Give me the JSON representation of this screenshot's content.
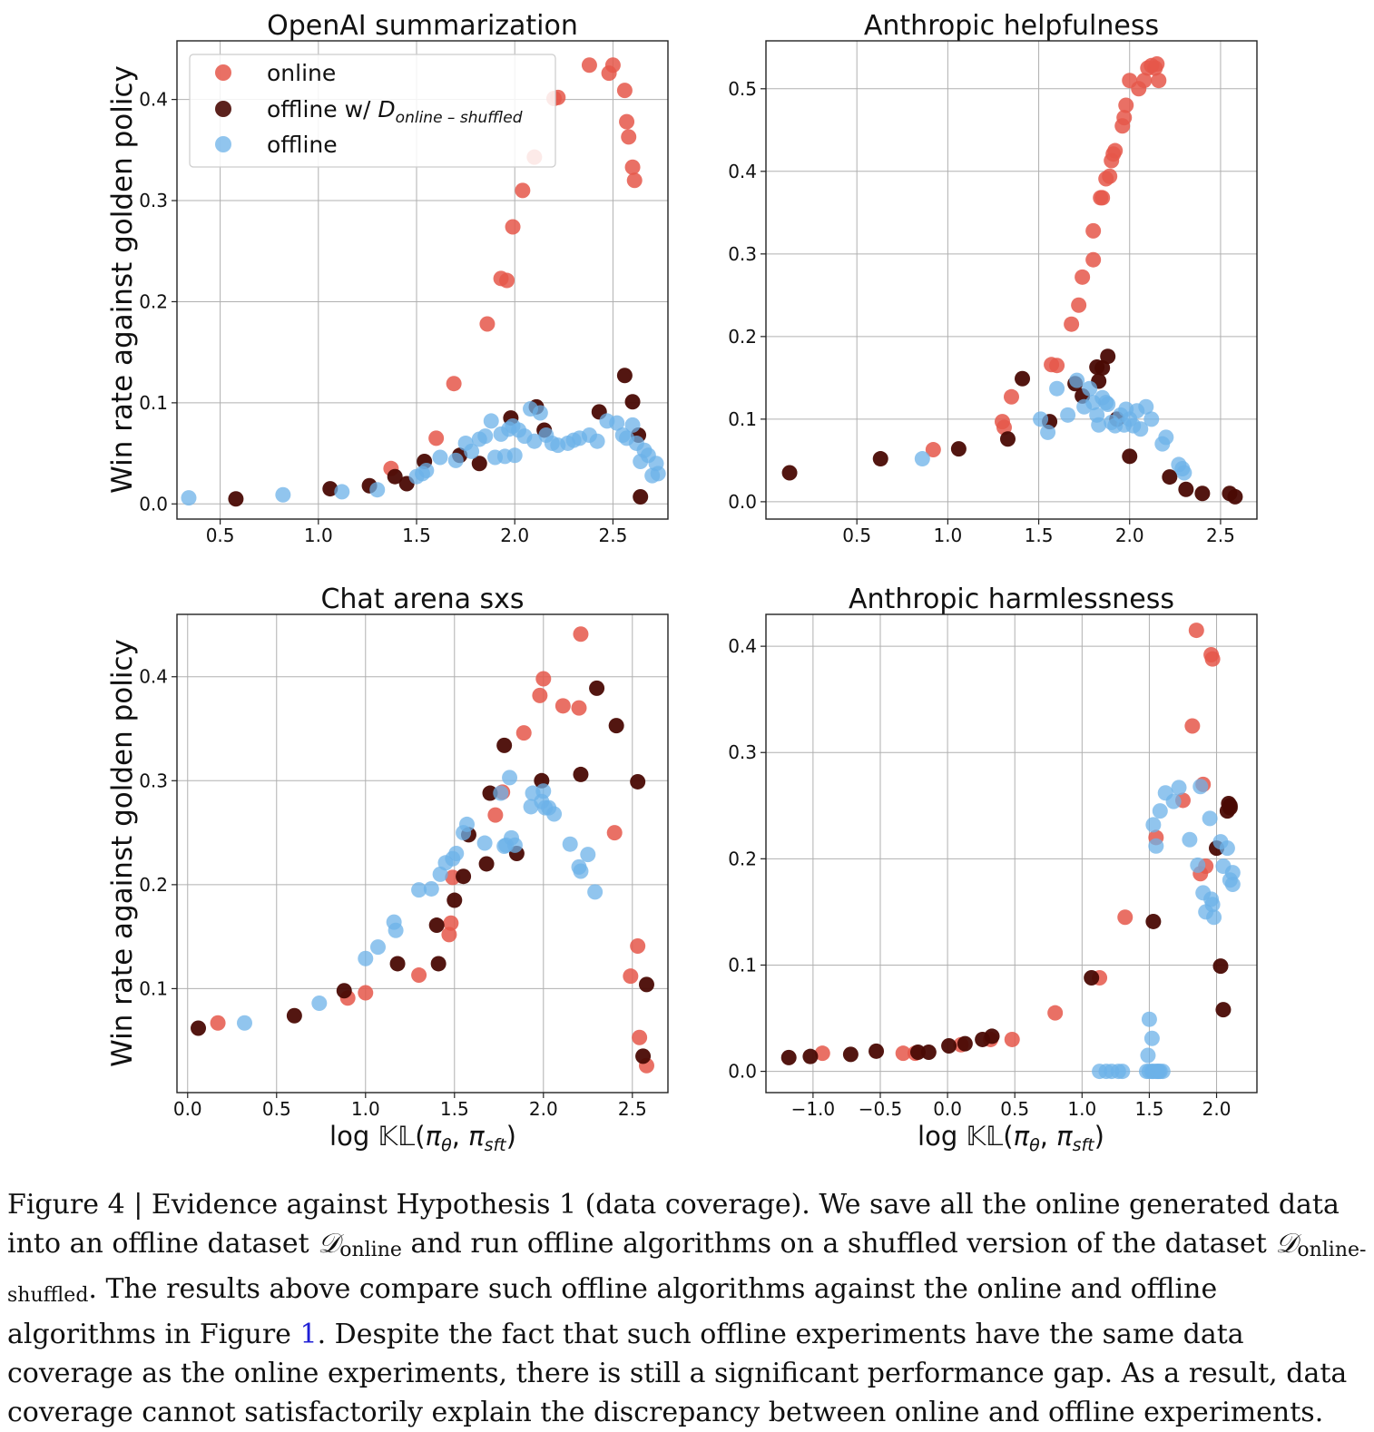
{
  "colors": {
    "online": "#e5574a",
    "offline_shuffled": "#4a0a04",
    "offline": "#6cb2e8"
  },
  "legend": {
    "online": "online",
    "offline_shuffled_prefix": "offline w/ ",
    "offline_shuffled_D": "D",
    "offline_shuffled_sub": "online – shuffled",
    "offline": "offline"
  },
  "axis_labels": {
    "y": "Win rate against golden policy",
    "x_prefix": "log ",
    "x_kl": "𝕂𝕃",
    "x_args_open": "(",
    "x_pi1": "π",
    "x_sub1": "θ",
    "x_sep": ", ",
    "x_pi2": "π",
    "x_sub2": "sft",
    "x_args_close": ")"
  },
  "caption": {
    "p1": "Figure 4 | Evidence against Hypothesis 1 (data coverage). We save all the online generated data into an offline dataset ",
    "d1": "𝒟",
    "d1_sub": "online",
    "p2": " and run offline algorithms on a shuffled version of the dataset ",
    "d2": "𝒟",
    "d2_sub": "online-shuffled",
    "p3": ". The results above compare such offline algorithms against the online and offline algorithms in Figure ",
    "ref": "1",
    "p4": ". Despite the fact that such offline experiments have the same data coverage as the online experiments, there is still a significant performance gap. As a result, data coverage cannot satisfactorily explain the discrepancy between online and offline experiments."
  },
  "chart_data": [
    {
      "type": "scatter",
      "title": "OpenAI summarization",
      "xlim": [
        0.28,
        2.78
      ],
      "ylim": [
        -0.015,
        0.458
      ],
      "xticks": [
        0.5,
        1.0,
        1.5,
        2.0,
        2.5
      ],
      "yticks": [
        0.0,
        0.1,
        0.2,
        0.3,
        0.4
      ],
      "xtick_labels": [
        "0.5",
        "1.0",
        "1.5",
        "2.0",
        "2.5"
      ],
      "ytick_labels": [
        "0.0",
        "0.1",
        "0.2",
        "0.3",
        "0.4"
      ],
      "grid": true,
      "legend": "top-left",
      "series": [
        {
          "name": "online",
          "x": [
            1.37,
            1.6,
            1.69,
            1.86,
            1.93,
            1.96,
            1.99,
            2.04,
            2.1,
            2.2,
            2.22,
            2.38,
            2.48,
            2.5,
            2.56,
            2.57,
            2.58,
            2.6,
            2.61
          ],
          "y": [
            0.035,
            0.065,
            0.119,
            0.178,
            0.223,
            0.221,
            0.274,
            0.31,
            0.343,
            0.401,
            0.402,
            0.434,
            0.426,
            0.434,
            0.409,
            0.378,
            0.363,
            0.333,
            0.32
          ]
        },
        {
          "name": "offline_shuffled",
          "x": [
            0.58,
            1.06,
            1.26,
            1.39,
            1.45,
            1.54,
            1.72,
            1.82,
            1.98,
            2.11,
            2.15,
            2.43,
            2.56,
            2.6,
            2.63,
            2.64
          ],
          "y": [
            0.005,
            0.015,
            0.018,
            0.027,
            0.02,
            0.042,
            0.048,
            0.04,
            0.085,
            0.096,
            0.073,
            0.091,
            0.127,
            0.101,
            0.068,
            0.007
          ]
        },
        {
          "name": "offline",
          "x": [
            0.34,
            0.82,
            1.12,
            1.3,
            1.5,
            1.53,
            1.55,
            1.62,
            1.7,
            1.75,
            1.78,
            1.82,
            1.85,
            1.88,
            1.9,
            1.93,
            1.95,
            1.97,
            1.99,
            2.0,
            2.02,
            2.05,
            2.08,
            2.1,
            2.13,
            2.16,
            2.19,
            2.22,
            2.27,
            2.3,
            2.33,
            2.38,
            2.42,
            2.47,
            2.52,
            2.55,
            2.57,
            2.6,
            2.62,
            2.64,
            2.66,
            2.68,
            2.7,
            2.72,
            2.73
          ],
          "y": [
            0.006,
            0.009,
            0.012,
            0.014,
            0.027,
            0.03,
            0.033,
            0.046,
            0.043,
            0.06,
            0.052,
            0.064,
            0.067,
            0.082,
            0.046,
            0.069,
            0.047,
            0.074,
            0.077,
            0.048,
            0.073,
            0.067,
            0.094,
            0.062,
            0.09,
            0.068,
            0.06,
            0.058,
            0.06,
            0.063,
            0.065,
            0.068,
            0.062,
            0.082,
            0.08,
            0.068,
            0.065,
            0.078,
            0.06,
            0.042,
            0.053,
            0.048,
            0.028,
            0.04,
            0.03
          ]
        }
      ]
    },
    {
      "type": "scatter",
      "title": "Anthropic helpfulness",
      "xlim": [
        0.0,
        2.7
      ],
      "ylim": [
        -0.021,
        0.558
      ],
      "xticks": [
        0.5,
        1.0,
        1.5,
        2.0,
        2.5
      ],
      "yticks": [
        0.0,
        0.1,
        0.2,
        0.3,
        0.4,
        0.5
      ],
      "xtick_labels": [
        "0.5",
        "1.0",
        "1.5",
        "2.0",
        "2.5"
      ],
      "ytick_labels": [
        "0.0",
        "0.1",
        "0.2",
        "0.3",
        "0.4",
        "0.5"
      ],
      "grid": true,
      "series": [
        {
          "name": "online",
          "x": [
            0.92,
            1.3,
            1.31,
            1.35,
            1.57,
            1.6,
            1.68,
            1.72,
            1.74,
            1.8,
            1.8,
            1.84,
            1.85,
            1.87,
            1.89,
            1.9,
            1.91,
            1.92,
            1.96,
            1.97,
            1.98,
            2.0,
            2.05,
            2.08,
            2.1,
            2.12,
            2.14,
            2.15,
            2.16
          ],
          "y": [
            0.063,
            0.097,
            0.09,
            0.127,
            0.166,
            0.165,
            0.215,
            0.238,
            0.272,
            0.293,
            0.328,
            0.368,
            0.368,
            0.391,
            0.394,
            0.413,
            0.421,
            0.425,
            0.455,
            0.465,
            0.48,
            0.51,
            0.5,
            0.51,
            0.525,
            0.528,
            0.525,
            0.53,
            0.51
          ]
        },
        {
          "name": "offline_shuffled",
          "x": [
            0.13,
            0.63,
            1.06,
            1.33,
            1.41,
            1.56,
            1.7,
            1.74,
            1.82,
            1.83,
            1.85,
            1.88,
            1.93,
            2.0,
            2.22,
            2.31,
            2.4,
            2.55,
            2.58
          ],
          "y": [
            0.035,
            0.052,
            0.064,
            0.076,
            0.149,
            0.097,
            0.143,
            0.128,
            0.163,
            0.146,
            0.162,
            0.176,
            0.1,
            0.055,
            0.03,
            0.015,
            0.01,
            0.01,
            0.006
          ]
        },
        {
          "name": "offline",
          "x": [
            0.86,
            1.51,
            1.55,
            1.6,
            1.66,
            1.71,
            1.75,
            1.78,
            1.8,
            1.82,
            1.83,
            1.85,
            1.87,
            1.88,
            1.9,
            1.92,
            1.95,
            1.97,
            1.98,
            2.0,
            2.02,
            2.04,
            2.06,
            2.09,
            2.12,
            2.18,
            2.2,
            2.27,
            2.29,
            2.3
          ],
          "y": [
            0.052,
            0.1,
            0.084,
            0.137,
            0.105,
            0.147,
            0.115,
            0.137,
            0.12,
            0.105,
            0.093,
            0.126,
            0.12,
            0.118,
            0.096,
            0.092,
            0.105,
            0.093,
            0.112,
            0.1,
            0.092,
            0.11,
            0.088,
            0.115,
            0.1,
            0.07,
            0.078,
            0.045,
            0.04,
            0.035
          ]
        }
      ]
    },
    {
      "type": "scatter",
      "title": "Chat arena sxs",
      "xlim": [
        -0.06,
        2.7
      ],
      "ylim": [
        0.0,
        0.46
      ],
      "xticks": [
        0.0,
        0.5,
        1.0,
        1.5,
        2.0,
        2.5
      ],
      "yticks": [
        0.1,
        0.2,
        0.3,
        0.4
      ],
      "xtick_labels": [
        "0.0",
        "0.5",
        "1.0",
        "1.5",
        "2.0",
        "2.5"
      ],
      "ytick_labels": [
        "0.1",
        "0.2",
        "0.3",
        "0.4"
      ],
      "xlabel": "log KL(πθ, πsft)",
      "grid": true,
      "series": [
        {
          "name": "online",
          "x": [
            0.17,
            0.9,
            1.0,
            1.3,
            1.47,
            1.48,
            1.49,
            1.73,
            1.77,
            1.89,
            1.98,
            2.0,
            2.11,
            2.2,
            2.21,
            2.4,
            2.49,
            2.53,
            2.54,
            2.58
          ],
          "y": [
            0.067,
            0.091,
            0.096,
            0.113,
            0.152,
            0.163,
            0.207,
            0.267,
            0.289,
            0.346,
            0.382,
            0.398,
            0.372,
            0.37,
            0.441,
            0.25,
            0.112,
            0.141,
            0.053,
            0.026
          ]
        },
        {
          "name": "offline_shuffled",
          "x": [
            0.06,
            0.6,
            0.88,
            1.18,
            1.4,
            1.41,
            1.5,
            1.55,
            1.58,
            1.68,
            1.7,
            1.78,
            1.85,
            1.99,
            2.21,
            2.3,
            2.41,
            2.53,
            2.56,
            2.58
          ],
          "y": [
            0.062,
            0.074,
            0.098,
            0.124,
            0.161,
            0.124,
            0.185,
            0.208,
            0.248,
            0.22,
            0.288,
            0.334,
            0.23,
            0.3,
            0.306,
            0.389,
            0.353,
            0.299,
            0.035,
            0.104
          ]
        },
        {
          "name": "offline",
          "x": [
            0.32,
            0.74,
            1.0,
            1.07,
            1.16,
            1.17,
            1.3,
            1.37,
            1.42,
            1.45,
            1.49,
            1.51,
            1.55,
            1.57,
            1.67,
            1.76,
            1.78,
            1.79,
            1.81,
            1.82,
            1.84,
            1.93,
            1.94,
            1.99,
            2.0,
            2.01,
            2.03,
            2.06,
            2.15,
            2.2,
            2.21,
            2.25,
            2.29
          ],
          "y": [
            0.067,
            0.086,
            0.129,
            0.14,
            0.164,
            0.156,
            0.195,
            0.196,
            0.21,
            0.221,
            0.225,
            0.23,
            0.25,
            0.258,
            0.24,
            0.288,
            0.237,
            0.238,
            0.303,
            0.245,
            0.238,
            0.275,
            0.288,
            0.28,
            0.29,
            0.274,
            0.274,
            0.268,
            0.239,
            0.217,
            0.213,
            0.229,
            0.193
          ]
        }
      ]
    },
    {
      "type": "scatter",
      "title": "Anthropic harmlessness",
      "xlim": [
        -1.35,
        2.3
      ],
      "ylim": [
        -0.02,
        0.43
      ],
      "xticks": [
        -1.0,
        -0.5,
        0.0,
        0.5,
        1.0,
        1.5,
        2.0
      ],
      "yticks": [
        0.0,
        0.1,
        0.2,
        0.3,
        0.4
      ],
      "xtick_labels": [
        "−1.0",
        "−0.5",
        "0.0",
        "0.5",
        "1.0",
        "1.5",
        "2.0"
      ],
      "ytick_labels": [
        "0.0",
        "0.1",
        "0.2",
        "0.3",
        "0.4"
      ],
      "xlabel": "log KL(πθ, πsft)",
      "grid": true,
      "series": [
        {
          "name": "online",
          "x": [
            -0.93,
            -0.33,
            -0.24,
            0.1,
            0.32,
            0.48,
            0.8,
            1.13,
            1.32,
            1.55,
            1.75,
            1.82,
            1.85,
            1.88,
            1.9,
            1.92,
            1.96,
            1.97
          ],
          "y": [
            0.017,
            0.017,
            0.017,
            0.025,
            0.03,
            0.03,
            0.055,
            0.088,
            0.145,
            0.22,
            0.255,
            0.325,
            0.415,
            0.186,
            0.27,
            0.193,
            0.392,
            0.388
          ]
        },
        {
          "name": "offline_shuffled",
          "x": [
            -1.18,
            -1.02,
            -0.72,
            -0.53,
            -0.22,
            -0.14,
            0.01,
            0.13,
            0.26,
            0.33,
            1.07,
            1.53,
            2.0,
            2.03,
            2.05,
            2.08,
            2.09,
            2.1,
            2.1
          ],
          "y": [
            0.013,
            0.014,
            0.016,
            0.019,
            0.018,
            0.018,
            0.024,
            0.026,
            0.03,
            0.033,
            0.088,
            0.141,
            0.21,
            0.099,
            0.058,
            0.245,
            0.252,
            0.248,
            0.25
          ]
        },
        {
          "name": "offline",
          "x": [
            1.13,
            1.18,
            1.22,
            1.27,
            1.3,
            1.5,
            1.52,
            1.53,
            1.55,
            1.56,
            1.57,
            1.58,
            1.6,
            1.48,
            1.49,
            1.5,
            1.52,
            1.53,
            1.55,
            1.58,
            1.62,
            1.68,
            1.72,
            1.8,
            1.86,
            1.88,
            1.9,
            1.92,
            1.95,
            1.96,
            1.97,
            1.98,
            2.03,
            2.05,
            2.08,
            2.1,
            2.12,
            2.12
          ],
          "y": [
            0.0,
            0.0,
            0.0,
            0.0,
            0.0,
            0.0,
            0.0,
            0.0,
            0.0,
            0.0,
            0.0,
            0.0,
            0.0,
            0.0,
            0.015,
            0.049,
            0.031,
            0.232,
            0.212,
            0.245,
            0.262,
            0.254,
            0.267,
            0.218,
            0.194,
            0.268,
            0.168,
            0.15,
            0.238,
            0.162,
            0.157,
            0.145,
            0.216,
            0.193,
            0.21,
            0.18,
            0.176,
            0.187
          ]
        }
      ]
    }
  ]
}
